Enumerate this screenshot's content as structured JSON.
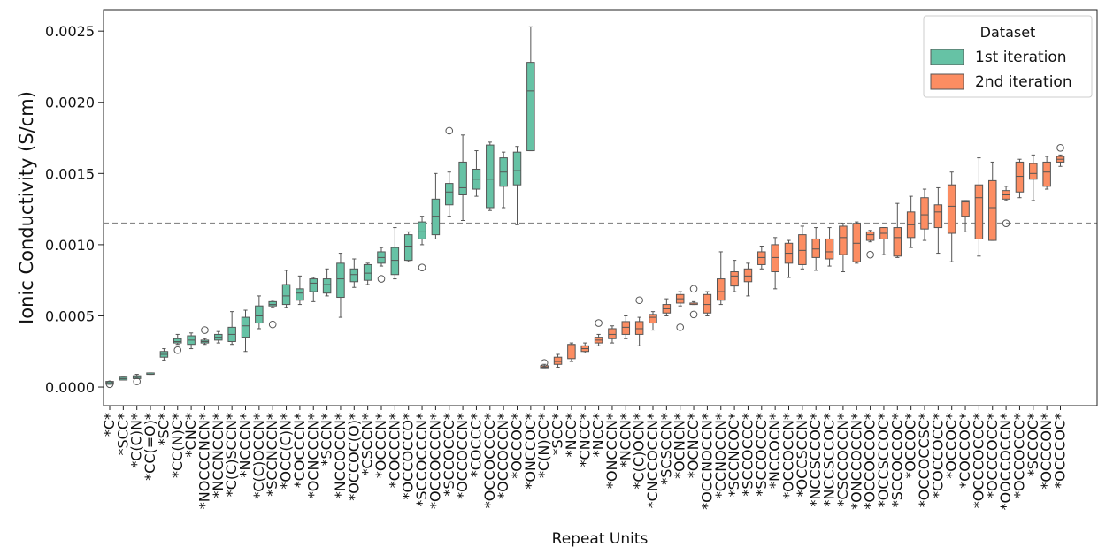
{
  "chart_data": {
    "type": "box",
    "title": "",
    "xlabel": "Repeat Units",
    "ylabel": "Ionic Conductivity (S/cm)",
    "ylim": [
      -0.00013,
      0.00265
    ],
    "yticks": [
      0.0,
      0.0005,
      0.001,
      0.0015,
      0.002,
      0.0025
    ],
    "ytick_labels": [
      "0.0000",
      "0.0005",
      "0.0010",
      "0.0015",
      "0.0020",
      "0.0025"
    ],
    "reference_line": {
      "y": 0.00115,
      "style": "dashed",
      "color": "#888888"
    },
    "legend": {
      "title": "Dataset",
      "position": "top-right",
      "entries": [
        {
          "label": "1st iteration",
          "color": "#66c2a5"
        },
        {
          "label": "2nd iteration",
          "color": "#fc8d62"
        }
      ]
    },
    "series": [
      {
        "name": "1st iteration",
        "color": "#66c2a5",
        "boxes": [
          {
            "label": "*C*",
            "q1": 2e-05,
            "median": 3e-05,
            "q3": 4e-05,
            "whislo": 2e-05,
            "whishi": 4e-05,
            "fliers": [
              2e-05
            ]
          },
          {
            "label": "*SCC*",
            "q1": 5e-05,
            "median": 6e-05,
            "q3": 7e-05,
            "whislo": 5e-05,
            "whishi": 7e-05,
            "fliers": []
          },
          {
            "label": "*C(C)N*",
            "q1": 6e-05,
            "median": 7e-05,
            "q3": 8e-05,
            "whislo": 6e-05,
            "whishi": 9e-05,
            "fliers": [
              4e-05
            ]
          },
          {
            "label": "*CC(=O)*",
            "q1": 9e-05,
            "median": 9e-05,
            "q3": 0.0001,
            "whislo": 9e-05,
            "whishi": 0.0001,
            "fliers": []
          },
          {
            "label": "*SC*",
            "q1": 0.00021,
            "median": 0.00023,
            "q3": 0.00025,
            "whislo": 0.00019,
            "whishi": 0.00027,
            "fliers": []
          },
          {
            "label": "*CC(N)C*",
            "q1": 0.00031,
            "median": 0.00032,
            "q3": 0.00034,
            "whislo": 0.0003,
            "whishi": 0.00037,
            "fliers": [
              0.00026
            ]
          },
          {
            "label": "*CNC*",
            "q1": 0.0003,
            "median": 0.00033,
            "q3": 0.00036,
            "whislo": 0.00027,
            "whishi": 0.00038,
            "fliers": []
          },
          {
            "label": "*NOCCCNCN*",
            "q1": 0.00031,
            "median": 0.00032,
            "q3": 0.00033,
            "whislo": 0.0003,
            "whishi": 0.00034,
            "fliers": [
              0.0004
            ]
          },
          {
            "label": "*NCCNCCN*",
            "q1": 0.00033,
            "median": 0.00035,
            "q3": 0.00037,
            "whislo": 0.00031,
            "whishi": 0.00039,
            "fliers": []
          },
          {
            "label": "*C(C)SCCN*",
            "q1": 0.00032,
            "median": 0.00037,
            "q3": 0.00042,
            "whislo": 0.0003,
            "whishi": 0.00053,
            "fliers": []
          },
          {
            "label": "*NCCCN*",
            "q1": 0.00035,
            "median": 0.00043,
            "q3": 0.00049,
            "whislo": 0.00025,
            "whishi": 0.00054,
            "fliers": []
          },
          {
            "label": "*C(C)OCCN*",
            "q1": 0.00045,
            "median": 0.0005,
            "q3": 0.00057,
            "whislo": 0.00041,
            "whishi": 0.00064,
            "fliers": []
          },
          {
            "label": "*SCCNCCN*",
            "q1": 0.00057,
            "median": 0.00058,
            "q3": 0.0006,
            "whislo": 0.00056,
            "whishi": 0.00061,
            "fliers": [
              0.00044
            ]
          },
          {
            "label": "*OCC(C)N*",
            "q1": 0.00058,
            "median": 0.00064,
            "q3": 0.00072,
            "whislo": 0.00056,
            "whishi": 0.00082,
            "fliers": []
          },
          {
            "label": "*COCCCN*",
            "q1": 0.00061,
            "median": 0.00066,
            "q3": 0.00069,
            "whislo": 0.00058,
            "whishi": 0.00078,
            "fliers": []
          },
          {
            "label": "*OCNCCCN*",
            "q1": 0.00067,
            "median": 0.00073,
            "q3": 0.00076,
            "whislo": 0.0006,
            "whishi": 0.00077,
            "fliers": []
          },
          {
            "label": "*SCCN*",
            "q1": 0.00066,
            "median": 0.00072,
            "q3": 0.00076,
            "whislo": 0.00064,
            "whishi": 0.00083,
            "fliers": []
          },
          {
            "label": "*NCCOCCN*",
            "q1": 0.00063,
            "median": 0.00076,
            "q3": 0.00087,
            "whislo": 0.00049,
            "whishi": 0.00094,
            "fliers": []
          },
          {
            "label": "*OCCOC(O)*",
            "q1": 0.00074,
            "median": 0.00079,
            "q3": 0.00083,
            "whislo": 0.0007,
            "whishi": 0.0009,
            "fliers": []
          },
          {
            "label": "*CSCCN*",
            "q1": 0.00075,
            "median": 0.0008,
            "q3": 0.00086,
            "whislo": 0.00072,
            "whishi": 0.00087,
            "fliers": []
          },
          {
            "label": "*OCCCN*",
            "q1": 0.00087,
            "median": 0.00091,
            "q3": 0.00095,
            "whislo": 0.00085,
            "whishi": 0.00098,
            "fliers": [
              0.00076
            ]
          },
          {
            "label": "*COCCCN*",
            "q1": 0.00079,
            "median": 0.00089,
            "q3": 0.00098,
            "whislo": 0.00076,
            "whishi": 0.00112,
            "fliers": []
          },
          {
            "label": "*OCCOCCO*",
            "q1": 0.00089,
            "median": 0.00099,
            "q3": 0.00107,
            "whislo": 0.00088,
            "whishi": 0.00109,
            "fliers": []
          },
          {
            "label": "*SCCOCCCN*",
            "q1": 0.00104,
            "median": 0.00109,
            "q3": 0.00116,
            "whislo": 0.001,
            "whishi": 0.0012,
            "fliers": [
              0.00084
            ]
          },
          {
            "label": "*OCCOCCCN*",
            "q1": 0.00107,
            "median": 0.0012,
            "q3": 0.00132,
            "whislo": 0.00104,
            "whishi": 0.0015,
            "fliers": []
          },
          {
            "label": "*SCCOCCC*",
            "q1": 0.00128,
            "median": 0.00137,
            "q3": 0.00143,
            "whislo": 0.0012,
            "whishi": 0.00151,
            "fliers": [
              0.0018
            ]
          },
          {
            "label": "*OCCOCCN*",
            "q1": 0.00135,
            "median": 0.0014,
            "q3": 0.00158,
            "whislo": 0.00117,
            "whishi": 0.00177,
            "fliers": []
          },
          {
            "label": "*COCCC*",
            "q1": 0.00139,
            "median": 0.00146,
            "q3": 0.00153,
            "whislo": 0.00134,
            "whishi": 0.00166,
            "fliers": []
          },
          {
            "label": "*OCCOCCCC*",
            "q1": 0.00126,
            "median": 0.00146,
            "q3": 0.0017,
            "whislo": 0.00124,
            "whishi": 0.00172,
            "fliers": []
          },
          {
            "label": "*OCCOCCN*",
            "q1": 0.00141,
            "median": 0.00151,
            "q3": 0.00161,
            "whislo": 0.00126,
            "whishi": 0.00165,
            "fliers": []
          },
          {
            "label": "*OCCOC*",
            "q1": 0.00142,
            "median": 0.00152,
            "q3": 0.00165,
            "whislo": 0.00114,
            "whishi": 0.00169,
            "fliers": []
          },
          {
            "label": "*ONCCOC*",
            "q1": 0.00166,
            "median": 0.00208,
            "q3": 0.00228,
            "whislo": 0.00166,
            "whishi": 0.00253,
            "fliers": []
          }
        ]
      },
      {
        "name": "2nd iteration",
        "color": "#fc8d62",
        "boxes": [
          {
            "label": "*C(N)CC*",
            "q1": 0.00013,
            "median": 0.00014,
            "q3": 0.00015,
            "whislo": 0.00013,
            "whishi": 0.00016,
            "fliers": [
              0.00017
            ]
          },
          {
            "label": "*SCC*",
            "q1": 0.00016,
            "median": 0.00018,
            "q3": 0.00021,
            "whislo": 0.00014,
            "whishi": 0.00023,
            "fliers": []
          },
          {
            "label": "*NCC*",
            "q1": 0.0002,
            "median": 0.00029,
            "q3": 0.0003,
            "whislo": 0.00018,
            "whishi": 0.00031,
            "fliers": []
          },
          {
            "label": "*CNCC*",
            "q1": 0.00025,
            "median": 0.00027,
            "q3": 0.00029,
            "whislo": 0.00024,
            "whishi": 0.00031,
            "fliers": []
          },
          {
            "label": "*NCC*",
            "q1": 0.00031,
            "median": 0.00033,
            "q3": 0.00035,
            "whislo": 0.00029,
            "whishi": 0.00037,
            "fliers": [
              0.00045
            ]
          },
          {
            "label": "*ONCCCN*",
            "q1": 0.00034,
            "median": 0.00037,
            "q3": 0.00041,
            "whislo": 0.00031,
            "whishi": 0.00043,
            "fliers": []
          },
          {
            "label": "*NCCN*",
            "q1": 0.00037,
            "median": 0.00042,
            "q3": 0.00046,
            "whislo": 0.00034,
            "whishi": 0.0005,
            "fliers": []
          },
          {
            "label": "*C(C)OCN*",
            "q1": 0.00037,
            "median": 0.00041,
            "q3": 0.00046,
            "whislo": 0.00029,
            "whishi": 0.00049,
            "fliers": [
              0.00061
            ]
          },
          {
            "label": "*CNCCOCCN*",
            "q1": 0.00045,
            "median": 0.00049,
            "q3": 0.00051,
            "whislo": 0.0004,
            "whishi": 0.00053,
            "fliers": []
          },
          {
            "label": "*SCSCCN*",
            "q1": 0.00052,
            "median": 0.00055,
            "q3": 0.00058,
            "whislo": 0.0005,
            "whishi": 0.00062,
            "fliers": []
          },
          {
            "label": "*OCNCN*",
            "q1": 0.00059,
            "median": 0.00062,
            "q3": 0.00065,
            "whislo": 0.00057,
            "whishi": 0.00067,
            "fliers": [
              0.00042
            ]
          },
          {
            "label": "*OCNCC*",
            "q1": 0.00058,
            "median": 0.00059,
            "q3": 0.00059,
            "whislo": 0.00058,
            "whishi": 0.0006,
            "fliers": [
              0.00069,
              0.00051
            ]
          },
          {
            "label": "*OCCNOCCN*",
            "q1": 0.00052,
            "median": 0.00058,
            "q3": 0.00065,
            "whislo": 0.0005,
            "whishi": 0.00067,
            "fliers": []
          },
          {
            "label": "*CCNOCCN*",
            "q1": 0.00061,
            "median": 0.00067,
            "q3": 0.00076,
            "whislo": 0.00058,
            "whishi": 0.00095,
            "fliers": []
          },
          {
            "label": "*SCCNCOC*",
            "q1": 0.00071,
            "median": 0.00078,
            "q3": 0.00081,
            "whislo": 0.00067,
            "whishi": 0.00089,
            "fliers": []
          },
          {
            "label": "*SCCOCCC*",
            "q1": 0.00074,
            "median": 0.00078,
            "q3": 0.00083,
            "whislo": 0.00064,
            "whishi": 0.00087,
            "fliers": []
          },
          {
            "label": "*SCCOCCC*",
            "q1": 0.00086,
            "median": 0.00091,
            "q3": 0.00095,
            "whislo": 0.00083,
            "whishi": 0.00099,
            "fliers": []
          },
          {
            "label": "*NCCOCN*",
            "q1": 0.00081,
            "median": 0.00091,
            "q3": 0.001,
            "whislo": 0.00069,
            "whishi": 0.00105,
            "fliers": []
          },
          {
            "label": "*OCCOCCN*",
            "q1": 0.00087,
            "median": 0.00094,
            "q3": 0.00101,
            "whislo": 0.00077,
            "whishi": 0.00103,
            "fliers": []
          },
          {
            "label": "*OCCSCCN*",
            "q1": 0.00086,
            "median": 0.00096,
            "q3": 0.00107,
            "whislo": 0.00083,
            "whishi": 0.00113,
            "fliers": []
          },
          {
            "label": "*NCCSCCOC*",
            "q1": 0.00091,
            "median": 0.00097,
            "q3": 0.00104,
            "whislo": 0.00082,
            "whishi": 0.00112,
            "fliers": []
          },
          {
            "label": "*NCCSCCOC*",
            "q1": 0.0009,
            "median": 0.00095,
            "q3": 0.00104,
            "whislo": 0.00085,
            "whishi": 0.00112,
            "fliers": []
          },
          {
            "label": "*CSCCOCCN*",
            "q1": 0.00093,
            "median": 0.00105,
            "q3": 0.00113,
            "whislo": 0.00081,
            "whishi": 0.00115,
            "fliers": []
          },
          {
            "label": "*ONCCOCCN*",
            "q1": 0.00088,
            "median": 0.00101,
            "q3": 0.00115,
            "whislo": 0.00087,
            "whishi": 0.00116,
            "fliers": []
          },
          {
            "label": "*OCCOCCOC*",
            "q1": 0.00103,
            "median": 0.00107,
            "q3": 0.00109,
            "whislo": 0.00102,
            "whishi": 0.0011,
            "fliers": [
              0.00093
            ]
          },
          {
            "label": "*OCCSCCOC*",
            "q1": 0.00104,
            "median": 0.00108,
            "q3": 0.00112,
            "whislo": 0.00093,
            "whishi": 0.00112,
            "fliers": []
          },
          {
            "label": "*SCCOCCOC*",
            "q1": 0.00092,
            "median": 0.00105,
            "q3": 0.00112,
            "whislo": 0.00091,
            "whishi": 0.00129,
            "fliers": []
          },
          {
            "label": "*OCCOC*",
            "q1": 0.00105,
            "median": 0.00114,
            "q3": 0.00123,
            "whislo": 0.00098,
            "whishi": 0.00134,
            "fliers": []
          },
          {
            "label": "*OCCOCCSC*",
            "q1": 0.00111,
            "median": 0.00121,
            "q3": 0.00133,
            "whislo": 0.00103,
            "whishi": 0.00139,
            "fliers": []
          },
          {
            "label": "*COCCOCC*",
            "q1": 0.00112,
            "median": 0.00123,
            "q3": 0.00128,
            "whislo": 0.00094,
            "whishi": 0.0014,
            "fliers": []
          },
          {
            "label": "*OCCOC*",
            "q1": 0.00108,
            "median": 0.00127,
            "q3": 0.00142,
            "whislo": 0.00088,
            "whishi": 0.00151,
            "fliers": []
          },
          {
            "label": "*COCCOC*",
            "q1": 0.0012,
            "median": 0.0013,
            "q3": 0.00131,
            "whislo": 0.00109,
            "whishi": 0.00131,
            "fliers": []
          },
          {
            "label": "*OCCCOCCC*",
            "q1": 0.00104,
            "median": 0.00133,
            "q3": 0.00142,
            "whislo": 0.00092,
            "whishi": 0.00161,
            "fliers": []
          },
          {
            "label": "*OCCCOCC*",
            "q1": 0.00103,
            "median": 0.00126,
            "q3": 0.00145,
            "whislo": 0.00103,
            "whishi": 0.00158,
            "fliers": []
          },
          {
            "label": "*OOCCOCCN*",
            "q1": 0.00132,
            "median": 0.00135,
            "q3": 0.00138,
            "whislo": 0.00131,
            "whishi": 0.00141,
            "fliers": [
              0.00115
            ]
          },
          {
            "label": "*OCCOCCC*",
            "q1": 0.00137,
            "median": 0.00148,
            "q3": 0.00158,
            "whislo": 0.00133,
            "whishi": 0.0016,
            "fliers": []
          },
          {
            "label": "*SCCOC*",
            "q1": 0.00146,
            "median": 0.0015,
            "q3": 0.00157,
            "whislo": 0.00131,
            "whishi": 0.00163,
            "fliers": []
          },
          {
            "label": "*OCCCON*",
            "q1": 0.00141,
            "median": 0.00151,
            "q3": 0.00158,
            "whislo": 0.00139,
            "whishi": 0.00162,
            "fliers": []
          },
          {
            "label": "*OCCCOC*",
            "q1": 0.00158,
            "median": 0.0016,
            "q3": 0.00162,
            "whislo": 0.00155,
            "whishi": 0.00163,
            "fliers": [
              0.00168
            ]
          }
        ]
      }
    ]
  }
}
